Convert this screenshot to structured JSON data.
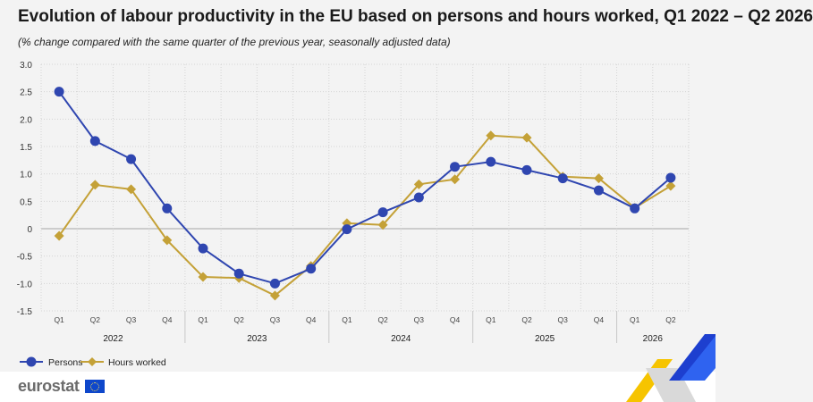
{
  "title": "Evolution of labour productivity in the EU based on persons and hours worked, Q1 2022 – Q2 2026",
  "subtitle": "(% change compared with the same quarter of the previous year, seasonally adjusted data)",
  "brand": {
    "logo_text": "eurostat"
  },
  "colors": {
    "persons": "#2f46b0",
    "hours": "#c4a137",
    "grid": "#d4d4d4",
    "zero": "#b5b5b5",
    "background": "#f3f3f3"
  },
  "chart_data": {
    "type": "line",
    "title": "Evolution of labour productivity in the EU based on persons and hours worked, Q1 2022 – Q2 2026",
    "subtitle": "(% change compared with the same quarter of the previous year, seasonally adjusted data)",
    "xlabel": "",
    "ylabel": "",
    "ylim": [
      -1.5,
      3.0
    ],
    "yticks": [
      3.0,
      2.5,
      2.0,
      1.5,
      1.0,
      0.5,
      0,
      -0.5,
      -1.0,
      -1.5
    ],
    "ytick_labels": [
      "3.0",
      "2.5",
      "2.0",
      "1.5",
      "1.0",
      "0.5",
      "0",
      "-0.5",
      "-1.0",
      "-1.5"
    ],
    "grid": true,
    "legend_position": "bottom-left",
    "categories": [
      "Q1",
      "Q2",
      "Q3",
      "Q4",
      "Q1",
      "Q2",
      "Q3",
      "Q4",
      "Q1",
      "Q2",
      "Q3",
      "Q4",
      "Q1",
      "Q2",
      "Q3",
      "Q4",
      "Q1",
      "Q2"
    ],
    "year_groups": [
      {
        "label": "2022",
        "count": 4
      },
      {
        "label": "2023",
        "count": 4
      },
      {
        "label": "2024",
        "count": 4
      },
      {
        "label": "2025",
        "count": 4
      },
      {
        "label": "2026",
        "count": 2
      }
    ],
    "series": [
      {
        "name": "Persons",
        "marker": "circle",
        "color": "#2f46b0",
        "values": [
          2.5,
          1.6,
          1.27,
          0.37,
          -0.36,
          -0.82,
          -1.0,
          -0.73,
          -0.01,
          0.3,
          0.57,
          1.13,
          1.22,
          1.07,
          0.92,
          0.7,
          0.37,
          0.93
        ]
      },
      {
        "name": "Hours worked",
        "marker": "diamond",
        "color": "#c4a137",
        "values": [
          -0.13,
          0.8,
          0.72,
          -0.21,
          -0.88,
          -0.9,
          -1.22,
          -0.68,
          0.1,
          0.07,
          0.81,
          0.9,
          1.7,
          1.66,
          0.95,
          0.92,
          0.38,
          0.78
        ]
      }
    ]
  }
}
